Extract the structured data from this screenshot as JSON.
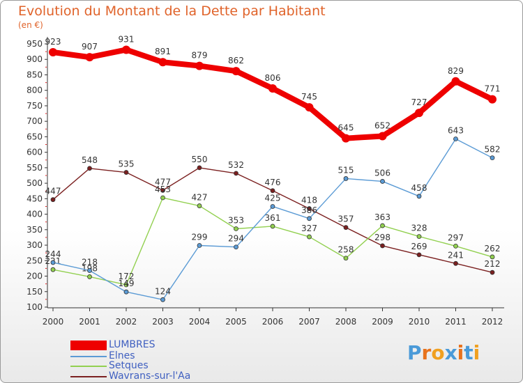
{
  "title": "Evolution du Montant de la Dette par Habitant",
  "unit_label": "(en €)",
  "logo": {
    "text": "Proxiti",
    "letters": [
      "P",
      "r",
      "o",
      "x",
      "i",
      "t",
      "i"
    ],
    "colors": [
      "#4a9ad8",
      "#e8721c",
      "#f0a020",
      "#4a9ad8",
      "#e8721c",
      "#4a9ad8",
      "#f0a020"
    ]
  },
  "chart_data": {
    "type": "line",
    "x": [
      "2000",
      "2001",
      "2002",
      "2003",
      "2004",
      "2005",
      "2006",
      "2007",
      "2008",
      "2009",
      "2010",
      "2011",
      "2012"
    ],
    "ylim": [
      100,
      950
    ],
    "yticks": [
      100,
      150,
      200,
      250,
      300,
      350,
      400,
      450,
      500,
      550,
      600,
      650,
      700,
      750,
      800,
      850,
      900,
      950
    ],
    "grid": false,
    "legend": "bottom-left",
    "series": [
      {
        "name": "LUMBRES",
        "color": "#ee0000",
        "values": [
          923,
          907,
          931,
          891,
          879,
          862,
          806,
          745,
          645,
          652,
          727,
          829,
          771
        ]
      },
      {
        "name": "Elnes",
        "color": "#5b9bd5",
        "values": [
          244,
          218,
          149,
          124,
          299,
          294,
          425,
          386,
          515,
          506,
          458,
          643,
          582
        ]
      },
      {
        "name": "Setques",
        "color": "#92d050",
        "values": [
          221,
          198,
          172,
          453,
          427,
          353,
          361,
          327,
          258,
          363,
          328,
          297,
          262
        ]
      },
      {
        "name": "Wavrans-sur-l'Aa",
        "color": "#7b2020",
        "values": [
          447,
          548,
          535,
          477,
          550,
          532,
          476,
          418,
          357,
          298,
          269,
          241,
          212
        ]
      }
    ]
  }
}
